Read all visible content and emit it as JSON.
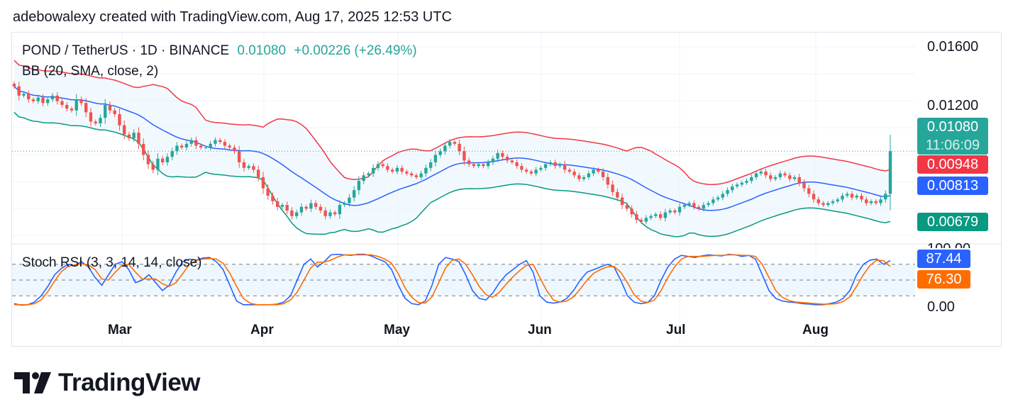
{
  "header": {
    "caption": "adebowalexy created with TradingView.com, Aug 17, 2025 12:53 UTC"
  },
  "legend": {
    "symbol": "POND / TetherUS · 1D · BINANCE",
    "last": "0.01080",
    "change": "+0.00226 (+26.49%)",
    "bb": "BB (20, SMA, close, 2)",
    "stoch": "Stoch RSI (3, 3, 14, 14, close)"
  },
  "price_axis": [
    "0.01600",
    "0.01200"
  ],
  "stoch_axis": [
    "100.00",
    "0.00"
  ],
  "tags": {
    "price": "0.01080",
    "countdown": "11:06:09",
    "bb_upper": "0.00948",
    "bb_basis": "0.00813",
    "bb_lower": "0.00679",
    "stoch_k": "87.44",
    "stoch_d": "76.30"
  },
  "colors": {
    "up": "#26a69a",
    "down": "#ef5350",
    "basis": "#2962ff",
    "upper": "#f23645",
    "lower": "#089981",
    "fill": "#e3f2fd",
    "k": "#2962ff",
    "d": "#ff6d00",
    "bg_band": "#e3f2fd"
  },
  "logo": {
    "text": "TradingView"
  },
  "chart_data": [
    {
      "type": "candlestick",
      "title": "POND / TetherUS · 1D · BINANCE",
      "ylim": [
        0.0058,
        0.0172
      ],
      "x": [
        "Mar",
        "Apr",
        "May",
        "Jun",
        "Jul",
        "Aug"
      ],
      "x_start": "2025-02-15",
      "x_end": "2025-08-17",
      "closes": [
        0.0143,
        0.0138,
        0.0139,
        0.0136,
        0.0135,
        0.0137,
        0.0134,
        0.0136,
        0.0138,
        0.0135,
        0.0133,
        0.0131,
        0.013,
        0.0136,
        0.0134,
        0.0129,
        0.0124,
        0.0123,
        0.0126,
        0.0133,
        0.013,
        0.0128,
        0.0122,
        0.0117,
        0.0115,
        0.0118,
        0.0112,
        0.0106,
        0.0101,
        0.0098,
        0.0104,
        0.0102,
        0.0105,
        0.0108,
        0.0111,
        0.011,
        0.0112,
        0.0114,
        0.0111,
        0.011,
        0.011,
        0.0112,
        0.0114,
        0.0113,
        0.0111,
        0.011,
        0.0108,
        0.0102,
        0.0099,
        0.01,
        0.0098,
        0.0094,
        0.0088,
        0.0084,
        0.0081,
        0.0078,
        0.0079,
        0.0076,
        0.0073,
        0.0075,
        0.0078,
        0.0077,
        0.008,
        0.0078,
        0.0076,
        0.0073,
        0.0075,
        0.0074,
        0.0079,
        0.008,
        0.0083,
        0.0087,
        0.0092,
        0.0095,
        0.0096,
        0.0099,
        0.0101,
        0.01,
        0.0098,
        0.0097,
        0.0099,
        0.0097,
        0.0096,
        0.0095,
        0.0094,
        0.0096,
        0.0099,
        0.0102,
        0.0106,
        0.0108,
        0.0111,
        0.0113,
        0.0112,
        0.0108,
        0.0103,
        0.0101,
        0.01,
        0.0101,
        0.01,
        0.0102,
        0.0104,
        0.0107,
        0.0105,
        0.0103,
        0.0102,
        0.01,
        0.0098,
        0.0097,
        0.0096,
        0.0098,
        0.0099,
        0.0101,
        0.0102,
        0.01,
        0.0101,
        0.0098,
        0.0097,
        0.0095,
        0.0093,
        0.0094,
        0.0096,
        0.0098,
        0.0097,
        0.0094,
        0.009,
        0.0086,
        0.0083,
        0.0079,
        0.0077,
        0.0074,
        0.0071,
        0.007,
        0.0072,
        0.0073,
        0.0074,
        0.0072,
        0.0075,
        0.0076,
        0.0075,
        0.0078,
        0.0079,
        0.008,
        0.0078,
        0.0077,
        0.0079,
        0.008,
        0.0082,
        0.0083,
        0.0085,
        0.0087,
        0.0089,
        0.009,
        0.0091,
        0.0092,
        0.0094,
        0.0096,
        0.0097,
        0.0095,
        0.0093,
        0.0094,
        0.0096,
        0.0095,
        0.0093,
        0.0094,
        0.0091,
        0.0088,
        0.0085,
        0.0082,
        0.008,
        0.0079,
        0.008,
        0.0081,
        0.0082,
        0.0084,
        0.0085,
        0.0083,
        0.0084,
        0.0082,
        0.008,
        0.0081,
        0.008,
        0.0082,
        0.0085,
        0.0108
      ]
    },
    {
      "type": "line",
      "title": "Stoch RSI (3, 3, 14, 14, close)",
      "ylim": [
        0,
        100
      ],
      "series": [
        {
          "name": "K",
          "values": [
            5,
            2,
            3,
            8,
            20,
            38,
            60,
            72,
            80,
            78,
            85,
            75,
            55,
            40,
            60,
            80,
            85,
            70,
            45,
            50,
            60,
            45,
            30,
            40,
            65,
            85,
            90,
            88,
            92,
            93,
            85,
            70,
            40,
            10,
            3,
            3,
            3,
            3,
            3,
            4,
            8,
            20,
            50,
            80,
            90,
            75,
            85,
            98,
            99,
            98,
            97,
            99,
            99,
            96,
            90,
            85,
            70,
            40,
            15,
            5,
            3,
            10,
            40,
            80,
            93,
            90,
            85,
            60,
            30,
            15,
            12,
            25,
            45,
            60,
            70,
            80,
            87,
            65,
            20,
            8,
            6,
            8,
            15,
            30,
            50,
            65,
            70,
            75,
            80,
            75,
            50,
            20,
            8,
            5,
            7,
            20,
            50,
            75,
            90,
            97,
            95,
            93,
            96,
            98,
            97,
            96,
            99,
            98,
            95,
            97,
            90,
            60,
            30,
            15,
            10,
            8,
            7,
            5,
            4,
            3,
            3,
            5,
            8,
            15,
            30,
            60,
            80,
            88,
            90,
            80,
            87
          ],
          "color": "#2962ff"
        },
        {
          "name": "D",
          "values": [
            3,
            3,
            3,
            5,
            12,
            28,
            48,
            66,
            76,
            79,
            81,
            79,
            70,
            52,
            50,
            65,
            78,
            80,
            65,
            52,
            52,
            52,
            43,
            38,
            45,
            62,
            80,
            87,
            90,
            91,
            90,
            82,
            63,
            38,
            15,
            6,
            3,
            3,
            3,
            3,
            5,
            12,
            27,
            50,
            73,
            84,
            84,
            88,
            94,
            98,
            98,
            98,
            98,
            98,
            95,
            90,
            82,
            62,
            35,
            17,
            7,
            6,
            18,
            45,
            73,
            88,
            90,
            80,
            60,
            38,
            22,
            17,
            27,
            42,
            56,
            68,
            78,
            80,
            55,
            30,
            12,
            8,
            10,
            18,
            33,
            50,
            63,
            70,
            75,
            76,
            65,
            45,
            22,
            10,
            7,
            12,
            30,
            55,
            75,
            90,
            95,
            95,
            95,
            96,
            97,
            97,
            98,
            98,
            97,
            97,
            95,
            80,
            55,
            30,
            17,
            11,
            8,
            7,
            6,
            5,
            4,
            4,
            5,
            9,
            18,
            38,
            60,
            78,
            88,
            87,
            76
          ],
          "color": "#ff6d00"
        }
      ],
      "levels": [
        80,
        50,
        20
      ]
    }
  ]
}
